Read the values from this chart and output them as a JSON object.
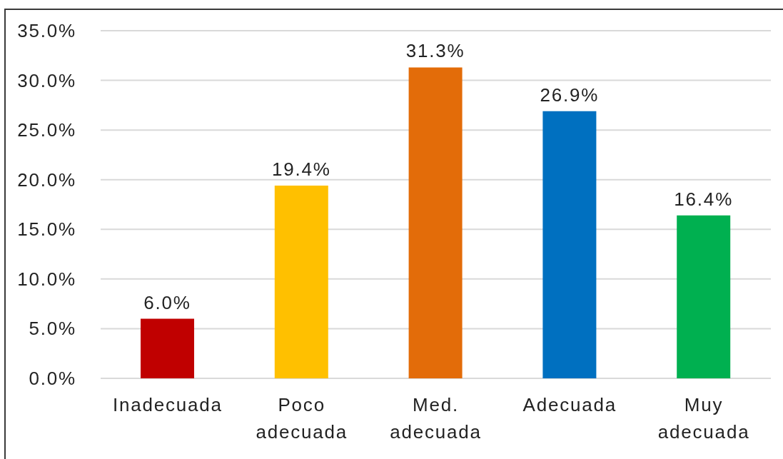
{
  "chart_data": {
    "type": "bar",
    "categories": [
      "Inadecuada",
      "Poco adecuada",
      "Med. adecuada",
      "Adecuada",
      "Muy adecuada"
    ],
    "values": [
      6.0,
      19.4,
      31.3,
      26.9,
      16.4
    ],
    "colors": [
      "#c00000",
      "#ffc000",
      "#e36c09",
      "#0070c0",
      "#00b050"
    ],
    "value_labels": [
      "6.0%",
      "19.4%",
      "31.3%",
      "26.9%",
      "16.4%"
    ],
    "ylim": [
      0,
      35
    ],
    "yticks": [
      {
        "value": 0,
        "label": "0.0%"
      },
      {
        "value": 5,
        "label": "5.0%"
      },
      {
        "value": 10,
        "label": "10.0%"
      },
      {
        "value": 15,
        "label": "15.0%"
      },
      {
        "value": 20,
        "label": "20.0%"
      },
      {
        "value": 25,
        "label": "25.0%"
      },
      {
        "value": 30,
        "label": "30.0%"
      },
      {
        "value": 35,
        "label": "35.0%"
      }
    ],
    "grid": "y"
  }
}
